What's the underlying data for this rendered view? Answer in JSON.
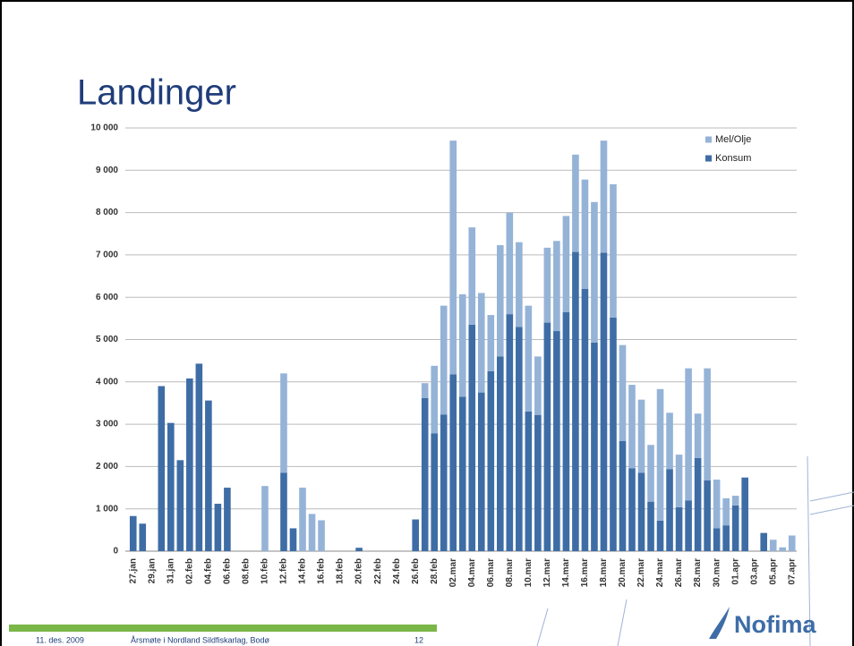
{
  "slide": {
    "title": "Landinger",
    "footer_date": "11. des. 2009",
    "footer_event": "Årsmøte i Nordland Sildfiskarlag, Bodø",
    "page_number": "12",
    "logo": "Nofima"
  },
  "chart_data": {
    "type": "bar",
    "stacked": true,
    "categories": [
      "27.jan",
      null,
      "29.jan",
      null,
      "31.jan",
      null,
      "02.feb",
      null,
      "04.feb",
      null,
      "06.feb",
      null,
      "08.feb",
      null,
      "10.feb",
      null,
      "12.feb",
      null,
      "14.feb",
      null,
      "16.feb",
      null,
      "18.feb",
      null,
      "20.feb",
      null,
      "22.feb",
      null,
      "24.feb",
      null,
      "26.feb",
      null,
      "28.feb",
      null,
      "02.mar",
      null,
      "04.mar",
      null,
      "06.mar",
      null,
      "08.mar",
      null,
      "10.mar",
      null,
      "12.mar",
      null,
      "14.mar",
      null,
      "16.mar",
      null,
      "18.mar",
      null,
      "20.mar",
      null,
      "22.mar",
      null,
      "24.mar",
      null,
      "26.mar",
      null,
      "28.mar",
      null,
      "30.mar",
      null,
      "01.apr",
      null,
      "03.apr",
      null,
      "05.apr",
      null,
      "07.apr"
    ],
    "series": [
      {
        "name": "Konsum",
        "color": "#3e6da6",
        "values": [
          830,
          650,
          0,
          3900,
          3030,
          2150,
          4080,
          4430,
          3560,
          1120,
          1500,
          0,
          0,
          0,
          0,
          0,
          1850,
          540,
          0,
          0,
          0,
          0,
          0,
          0,
          80,
          0,
          0,
          0,
          0,
          0,
          750,
          3620,
          2780,
          3230,
          4180,
          3650,
          5350,
          3750,
          4250,
          4600,
          5600,
          5300,
          3300,
          3220,
          5400,
          5200,
          5650,
          7070,
          6200,
          4930,
          7050,
          5520,
          2600,
          1960,
          1850,
          1170,
          720,
          1940,
          1040,
          1200,
          2200,
          1670,
          540,
          610,
          1080,
          1740,
          0,
          430,
          0,
          0,
          0
        ]
      },
      {
        "name": "Mel/Olje",
        "color": "#95b3d7",
        "values": [
          0,
          0,
          0,
          0,
          0,
          0,
          0,
          0,
          0,
          0,
          0,
          0,
          0,
          0,
          1540,
          0,
          2350,
          0,
          1500,
          880,
          730,
          0,
          0,
          0,
          0,
          0,
          0,
          0,
          0,
          0,
          0,
          350,
          1600,
          2570,
          5520,
          2420,
          2300,
          2350,
          1330,
          2630,
          2400,
          2000,
          2500,
          1380,
          1770,
          2130,
          2270,
          2300,
          2580,
          3320,
          2650,
          3150,
          2270,
          1970,
          1730,
          1340,
          3110,
          1330,
          1240,
          3120,
          1050,
          2650,
          1150,
          640,
          230,
          0,
          0,
          0,
          270,
          90,
          370
        ]
      }
    ],
    "ylim": [
      0,
      10000
    ],
    "yticks": [
      0,
      {
        "value": 1000,
        "label": "1 000"
      },
      {
        "value": 2000,
        "label": "2 000"
      },
      {
        "value": 3000,
        "label": "3 000"
      },
      {
        "value": 4000,
        "label": "4 000"
      },
      {
        "value": 5000,
        "label": "5 000"
      },
      {
        "value": 6000,
        "label": "6 000"
      },
      {
        "value": 7000,
        "label": "7 000"
      },
      {
        "value": 8000,
        "label": "8 000"
      },
      {
        "value": 9000,
        "label": "9 000"
      },
      {
        "value": 10000,
        "label": "10 000"
      }
    ],
    "grid": true,
    "legend": "top-right"
  }
}
